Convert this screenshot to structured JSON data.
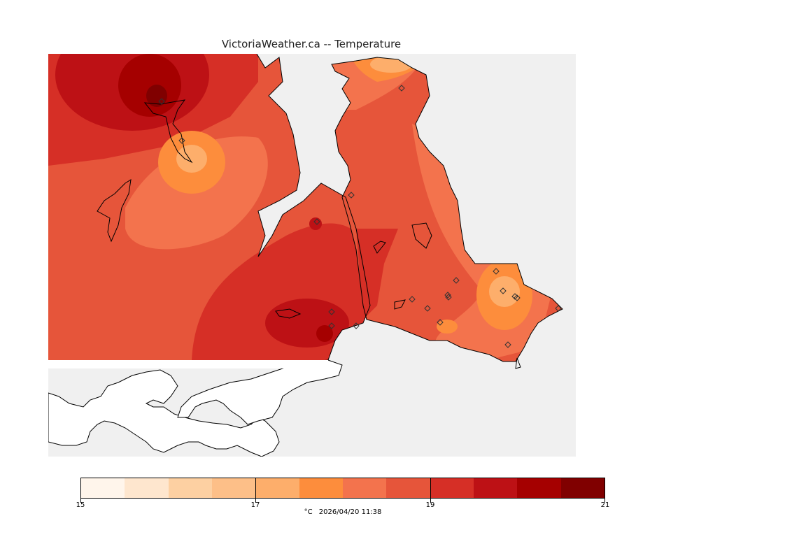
{
  "title": "VictoriaWeather.ca -- Temperature",
  "legend": {
    "colors": [
      "#fff5eb",
      "#fee6ce",
      "#fdd0a2",
      "#fdbf88",
      "#fdae6b",
      "#fd8d3c",
      "#f3734d",
      "#e6553a",
      "#d62f26",
      "#bd1115",
      "#a50000",
      "#800000"
    ],
    "range": [
      15,
      21
    ],
    "ticks": [
      "15",
      "17",
      "19",
      "21"
    ],
    "tick_values": [
      15,
      17,
      19,
      21
    ]
  },
  "caption": {
    "unit": "°C",
    "timestamp": "2026/04/20 11:38"
  },
  "map": {
    "sea_color": "#f0f0f0",
    "unmapped_land_color": "#ffffff",
    "station_marker": "diamond-icon"
  }
}
